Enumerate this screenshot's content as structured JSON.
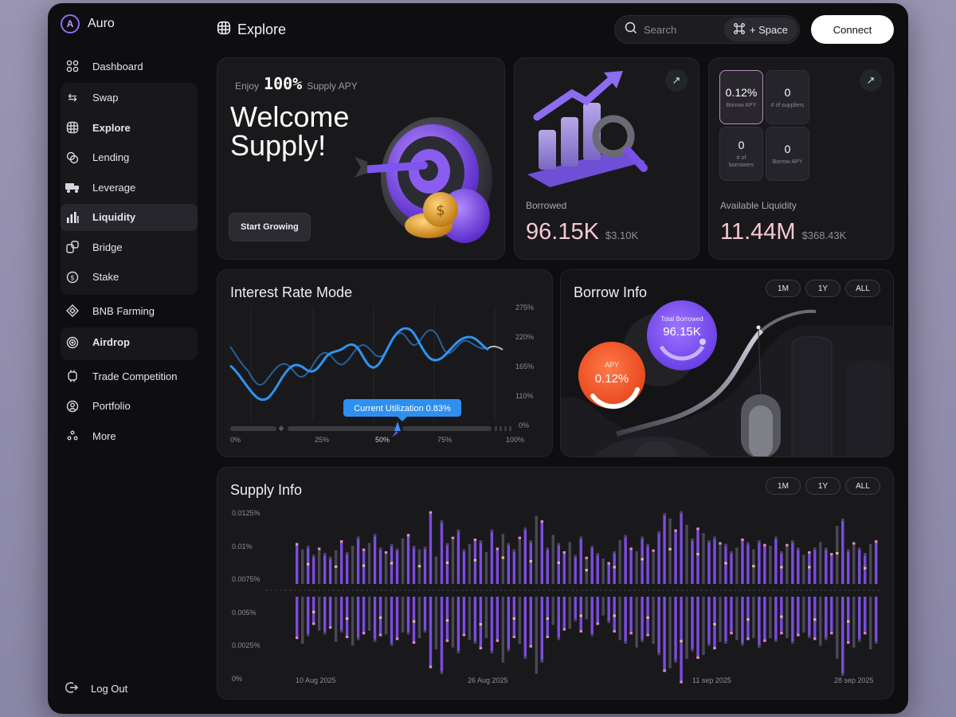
{
  "app": {
    "name": "Auro",
    "page_title": "Explore"
  },
  "sidebar": {
    "dashboard": {
      "label": "Dashboard",
      "icon": "grid-icon"
    },
    "groups": [
      [
        {
          "label": "Swap",
          "icon": "swap-icon"
        },
        {
          "label": "Explore",
          "icon": "globe-icon",
          "bold": true
        },
        {
          "label": "Lending",
          "icon": "coins-icon"
        },
        {
          "label": "Leverage",
          "icon": "truck-icon"
        },
        {
          "label": "Liquidity",
          "icon": "bars-icon",
          "active": true
        },
        {
          "label": "Bridge",
          "icon": "bridge-icon"
        },
        {
          "label": "Stake",
          "icon": "dollar-coin-icon"
        }
      ]
    ],
    "bnb": {
      "label": "BNB Farming",
      "icon": "diamond-icon"
    },
    "airdrop": {
      "label": "Airdrop",
      "icon": "broadcast-icon"
    },
    "rest": [
      {
        "label": "Trade Competition",
        "icon": "chip-icon"
      },
      {
        "label": "Portfolio",
        "icon": "user-icon"
      },
      {
        "label": "More",
        "icon": "dots-icon"
      }
    ],
    "logout": "Log Out"
  },
  "header": {
    "search_placeholder": "Search",
    "shortcut_label": "+ Space",
    "connect_label": "Connect"
  },
  "welcome": {
    "enjoy_prefix": "Enjoy",
    "enjoy_value": "100%",
    "enjoy_suffix": "Supply APY",
    "title": "Welcome Supply!",
    "cta": "Start Growing"
  },
  "borrowed": {
    "label": "Borrowed",
    "value": "96.15K",
    "usd": "$3.10K"
  },
  "liquidity": {
    "label": "Available Liquidity",
    "value": "11.44M",
    "usd": "$368.43K",
    "stats": [
      {
        "value": "0.12%",
        "label": "Borrow APY"
      },
      {
        "value": "0",
        "label": "# of suppliers"
      },
      {
        "value": "0",
        "label": "# of borrowers"
      },
      {
        "value": "0",
        "label": "Borrow APY"
      }
    ]
  },
  "interest": {
    "title": "Interest Rate Mode",
    "y_ticks": [
      "275%",
      "220%",
      "165%",
      "110%",
      "0%"
    ],
    "x_ticks": [
      "0%",
      "25%",
      "50%",
      "75%",
      "100%"
    ],
    "tooltip": "Current Utilization 0.83%"
  },
  "borrow_info": {
    "title": "Borrow Info",
    "ranges": [
      "1M",
      "1Y",
      "ALL"
    ],
    "total_label": "Total Borrowed",
    "total_value": "96.15K",
    "apy_label": "APY",
    "apy_value": "0.12%"
  },
  "chart_data": {
    "type": "bar",
    "title": "Supply Info",
    "ranges": [
      "1M",
      "1Y",
      "ALL"
    ],
    "y_ticks": [
      "0.0125%",
      "0.01%",
      "0.0075%",
      "0.005%",
      "0.0025%",
      "0%"
    ],
    "x_ticks": [
      "10 Aug 2025",
      "26 Aug 2025",
      "11 sep 2025",
      "28 sep 2025"
    ],
    "colors": {
      "primary": "#7c4ce0",
      "secondary": "#4a4852",
      "pink": "#e58ab8",
      "gold": "#e9c27a"
    },
    "up": [
      0.45,
      0.38,
      0.42,
      0.32,
      0.4,
      0.34,
      0.3,
      0.37,
      0.48,
      0.35,
      0.42,
      0.52,
      0.39,
      0.45,
      0.55,
      0.4,
      0.36,
      0.44,
      0.39,
      0.5,
      0.55,
      0.42,
      0.38,
      0.41,
      0.8,
      0.3,
      0.7,
      0.45,
      0.52,
      0.6,
      0.38,
      0.44,
      0.5,
      0.48,
      0.35,
      0.6,
      0.4,
      0.55,
      0.45,
      0.38,
      0.52,
      0.62,
      0.48,
      0.75,
      0.7,
      0.4,
      0.54,
      0.45,
      0.36,
      0.46,
      0.32,
      0.52,
      0.3,
      0.42,
      0.34,
      0.28,
      0.24,
      0.36,
      0.48,
      0.54,
      0.4,
      0.36,
      0.52,
      0.44,
      0.38,
      0.58,
      0.78,
      0.72,
      0.6,
      0.8,
      0.65,
      0.5,
      0.62,
      0.56,
      0.48,
      0.52,
      0.46,
      0.44,
      0.36,
      0.4,
      0.5,
      0.46,
      0.38,
      0.48,
      0.44,
      0.42,
      0.52,
      0.36,
      0.44,
      0.48,
      0.4,
      0.32,
      0.36,
      0.4,
      0.46,
      0.4,
      0.34,
      0.64,
      0.72,
      0.38,
      0.46,
      0.4,
      0.34,
      0.44,
      0.48
    ],
    "down": [
      0.45,
      0.5,
      0.42,
      0.3,
      0.36,
      0.4,
      0.34,
      0.48,
      0.38,
      0.44,
      0.52,
      0.46,
      0.4,
      0.36,
      0.48,
      0.42,
      0.4,
      0.52,
      0.46,
      0.38,
      0.4,
      0.5,
      0.44,
      0.38,
      0.76,
      0.56,
      0.82,
      0.48,
      0.54,
      0.6,
      0.42,
      0.46,
      0.5,
      0.56,
      0.44,
      0.6,
      0.48,
      0.7,
      0.58,
      0.44,
      0.5,
      0.66,
      0.54,
      0.82,
      0.7,
      0.44,
      0.3,
      0.46,
      0.36,
      0.34,
      0.26,
      0.38,
      0.24,
      0.42,
      0.3,
      0.2,
      0.28,
      0.38,
      0.46,
      0.5,
      0.4,
      0.54,
      0.48,
      0.42,
      0.5,
      0.62,
      0.8,
      0.76,
      0.7,
      0.92,
      0.66,
      0.58,
      0.66,
      0.62,
      0.52,
      0.56,
      0.48,
      0.5,
      0.4,
      0.46,
      0.52,
      0.46,
      0.44,
      0.54,
      0.48,
      0.44,
      0.48,
      0.4,
      0.44,
      0.5,
      0.42,
      0.38,
      0.44,
      0.46,
      0.52,
      0.46,
      0.4,
      0.66,
      0.84,
      0.5,
      0.54,
      0.48,
      0.4,
      0.56,
      0.5
    ]
  }
}
